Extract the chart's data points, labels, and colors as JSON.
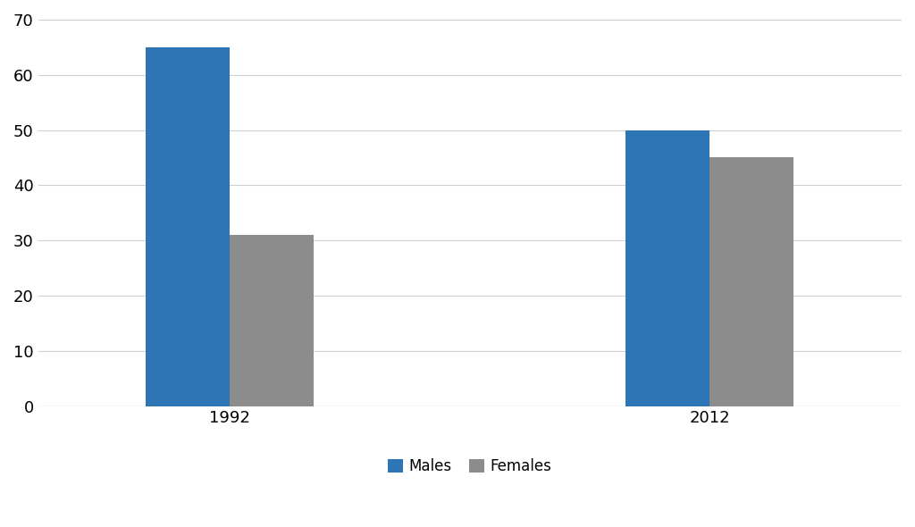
{
  "categories": [
    "1992",
    "2012"
  ],
  "males": [
    65,
    50
  ],
  "females": [
    31,
    45
  ],
  "male_color": "#2E75B6",
  "female_color": "#8C8C8C",
  "ylim": [
    0,
    70
  ],
  "yticks": [
    0,
    10,
    20,
    30,
    40,
    50,
    60,
    70
  ],
  "legend_labels": [
    "Males",
    "Females"
  ],
  "bar_width": 0.35,
  "background_color": "#ffffff",
  "grid_color": "#d0d0d0",
  "tick_fontsize": 13,
  "legend_fontsize": 12
}
